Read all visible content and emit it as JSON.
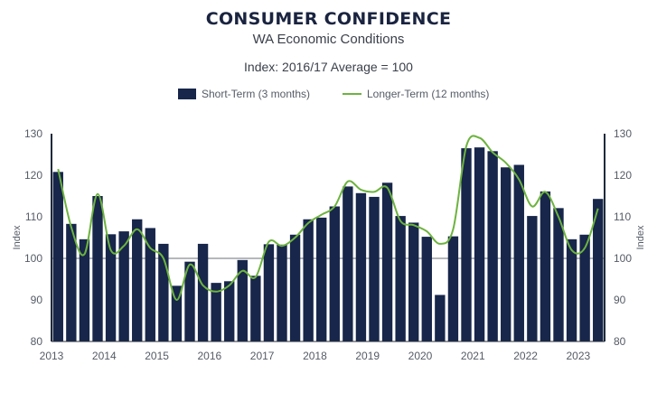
{
  "header": {
    "title": "CONSUMER CONFIDENCE",
    "subtitle": "WA Economic Conditions",
    "note": "Index: 2016/17 Average = 100"
  },
  "chart_data": {
    "type": "bar",
    "title": "CONSUMER CONFIDENCE",
    "subtitle": "WA Economic Conditions",
    "ylabel": "Index",
    "ylabel_right": "Index",
    "ylim": [
      80,
      130
    ],
    "yticks": [
      80,
      90,
      100,
      110,
      120,
      130
    ],
    "reference_line": 100,
    "legend_position": "top-center",
    "year_labels": [
      "2013",
      "2014",
      "2015",
      "2016",
      "2017",
      "2018",
      "2019",
      "2020",
      "2021",
      "2022",
      "2023"
    ],
    "quarter_start": "2013-Q1",
    "series": [
      {
        "name": "Short-Term (3 months)",
        "type": "bar",
        "color": "#17264a",
        "values": [
          120.8,
          108.3,
          104.6,
          115.0,
          105.8,
          106.5,
          109.4,
          107.3,
          103.5,
          93.4,
          99.2,
          103.5,
          94.1,
          94.5,
          99.6,
          95.8,
          103.4,
          103.3,
          105.7,
          109.4,
          109.8,
          112.5,
          117.3,
          115.7,
          114.8,
          118.2,
          110.2,
          108.6,
          105.2,
          91.2,
          105.3,
          126.5,
          126.7,
          125.8,
          121.9,
          122.5,
          110.2,
          116.1,
          112.1,
          104.6,
          105.7,
          114.3
        ]
      },
      {
        "name": "Longer-Term (12 months)",
        "type": "line",
        "color": "#6db33f",
        "values": [
          121.5,
          107.5,
          101.0,
          115.5,
          102.0,
          103.0,
          107.0,
          102.5,
          100.0,
          90.0,
          98.5,
          93.5,
          92.0,
          93.5,
          97.0,
          95.5,
          104.0,
          103.0,
          105.0,
          108.5,
          110.5,
          112.5,
          118.5,
          116.5,
          116.0,
          117.0,
          109.0,
          108.0,
          106.5,
          103.5,
          107.0,
          127.0,
          129.0,
          125.5,
          123.0,
          119.0,
          112.5,
          116.0,
          110.0,
          102.0,
          102.5,
          112.0
        ]
      }
    ]
  }
}
